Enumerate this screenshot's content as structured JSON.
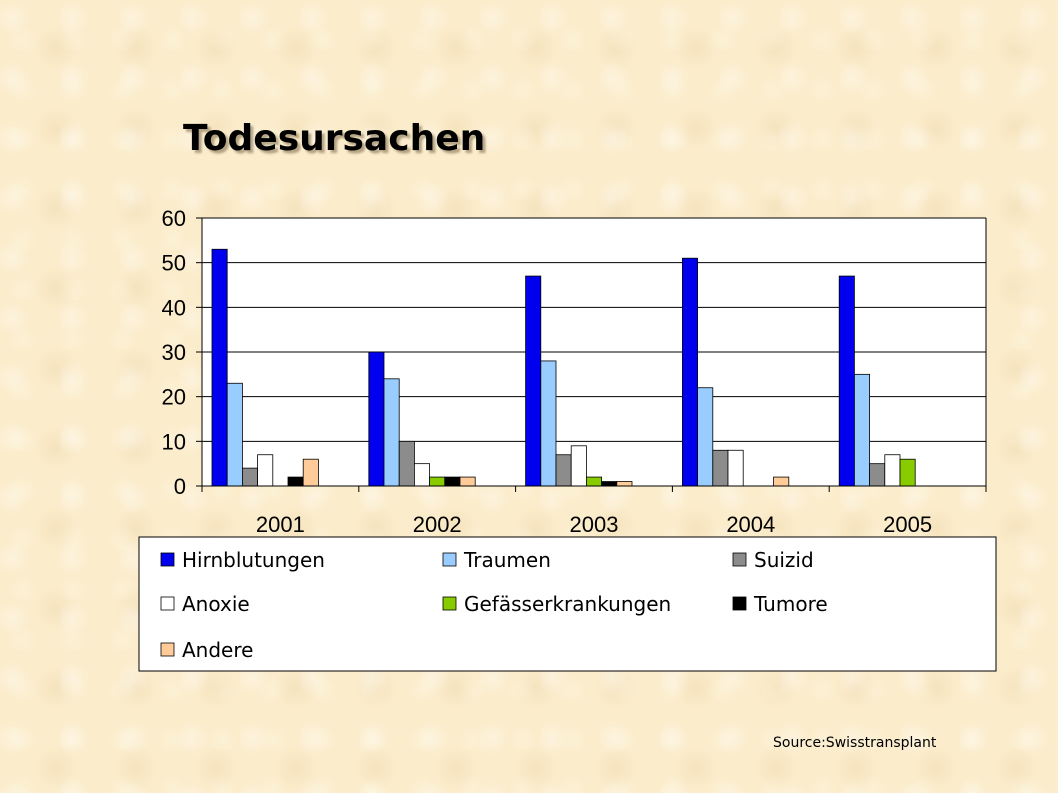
{
  "slide": {
    "title": "Todesursachen",
    "source": "Source:Swisstransplant"
  },
  "chart_data": {
    "type": "bar",
    "title": "Todesursachen",
    "categories": [
      "2001",
      "2002",
      "2003",
      "2004",
      "2005"
    ],
    "ylim": [
      0,
      60
    ],
    "yticks": [
      0,
      10,
      20,
      30,
      40,
      50,
      60
    ],
    "grid": true,
    "legend_position": "bottom",
    "series": [
      {
        "name": "Hirnblutungen",
        "color": "#0000ee",
        "values": [
          53,
          30,
          47,
          51,
          47
        ]
      },
      {
        "name": "Traumen",
        "color": "#99ccff",
        "values": [
          23,
          24,
          28,
          22,
          25
        ]
      },
      {
        "name": "Suizid",
        "color": "#8c8c8c",
        "values": [
          4,
          10,
          7,
          8,
          5
        ]
      },
      {
        "name": "Anoxie",
        "color": "#ffffff",
        "values": [
          7,
          5,
          9,
          8,
          7
        ]
      },
      {
        "name": "Gefässerkrankungen",
        "color": "#88cc00",
        "values": [
          0,
          2,
          2,
          0,
          6
        ]
      },
      {
        "name": "Tumore",
        "color": "#000000",
        "values": [
          2,
          2,
          1,
          0,
          0
        ]
      },
      {
        "name": "Andere",
        "color": "#ffcc99",
        "values": [
          6,
          2,
          1,
          2,
          0
        ]
      }
    ]
  }
}
